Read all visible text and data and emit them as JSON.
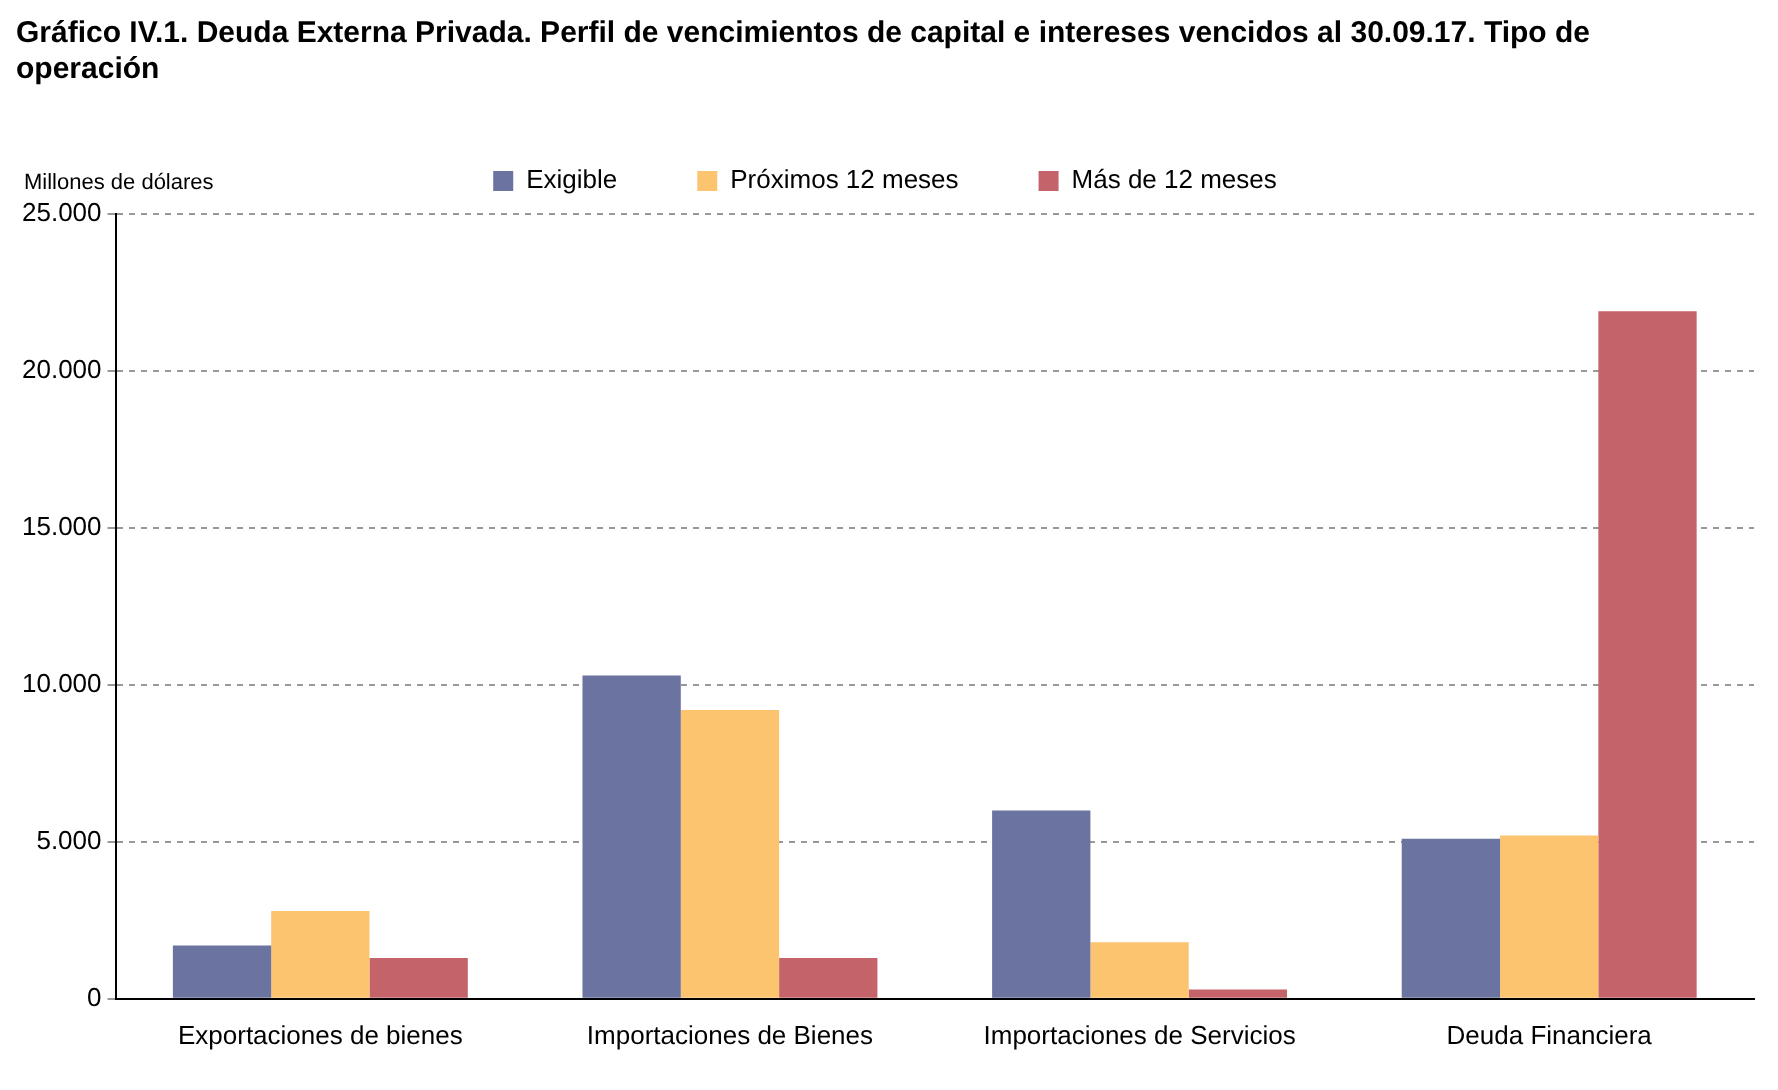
{
  "chart_data": {
    "type": "bar",
    "title": "Gráfico IV.1. Deuda Externa Privada. Perfil de vencimientos de capital e intereses vencidos al 30.09.17. Tipo de operación",
    "ylabel": "Millones de dólares",
    "categories": [
      "Exportaciones de bienes",
      "Importaciones de Bienes",
      "Importaciones de Servicios",
      "Deuda Financiera"
    ],
    "series": [
      {
        "name": "Exigible",
        "color": "#6b73a0",
        "values": [
          1700,
          10300,
          6000,
          5100
        ]
      },
      {
        "name": "Próximos 12 meses",
        "color": "#fcc46e",
        "values": [
          2800,
          9200,
          1800,
          5200
        ]
      },
      {
        "name": "Más de 12 meses",
        "color": "#c4636a",
        "values": [
          1300,
          1300,
          300,
          21900
        ]
      }
    ],
    "ylim": [
      0,
      25000
    ],
    "yticks": [
      {
        "value": 0,
        "label": "0"
      },
      {
        "value": 5000,
        "label": "5.000"
      },
      {
        "value": 10000,
        "label": "10.000"
      },
      {
        "value": 15000,
        "label": "15.000"
      },
      {
        "value": 20000,
        "label": "20.000"
      },
      {
        "value": 25000,
        "label": "25.000"
      }
    ],
    "grid": "y",
    "legend": "top"
  }
}
